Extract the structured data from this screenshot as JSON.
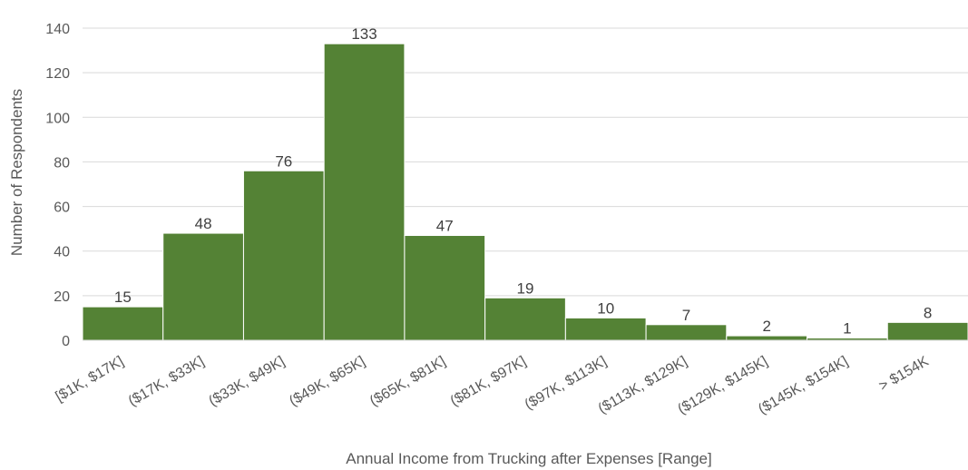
{
  "chart_data": {
    "type": "bar",
    "title": "",
    "xlabel": "Annual Income from Trucking after Expenses [Range]",
    "ylabel": "Number of Respondents",
    "categories": [
      "[$1K, $17K]",
      "($17K, $33K]",
      "($33K, $49K]",
      "($49K, $65K]",
      "($65K, $81K]",
      "($81K, $97K]",
      "($97K, $113K]",
      "($113K, $129K]",
      "($129K, $145K]",
      "($145K, $154K]",
      "> $154K"
    ],
    "values": [
      15,
      48,
      76,
      133,
      47,
      19,
      10,
      7,
      2,
      1,
      8
    ],
    "ylim": [
      0,
      150
    ],
    "yticks": [
      0,
      20,
      40,
      60,
      80,
      100,
      120,
      140
    ],
    "grid": true,
    "legend": "none",
    "bar_color": "#548235"
  }
}
